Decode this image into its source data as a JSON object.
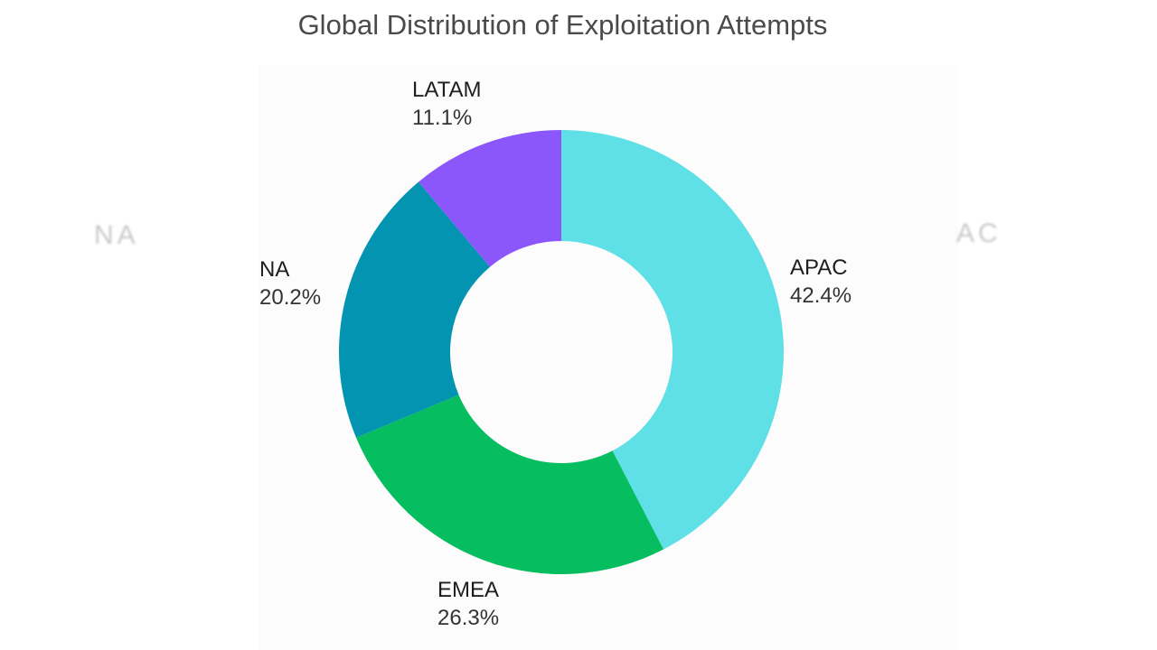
{
  "chart_data": {
    "type": "pie",
    "title": "Global Distribution of Exploitation Attempts",
    "donut": true,
    "slices": [
      {
        "label": "APAC",
        "value": 42.4,
        "value_label": "42.4%",
        "color": "#5fe0e6"
      },
      {
        "label": "EMEA",
        "value": 26.3,
        "value_label": "26.3%",
        "color": "#06be5f"
      },
      {
        "label": "NA",
        "value": 20.2,
        "value_label": "20.2%",
        "color": "#0294b1"
      },
      {
        "label": "LATAM",
        "value": 11.1,
        "value_label": "11.1%",
        "color": "#8b57fb"
      }
    ]
  },
  "ghost_text": {
    "left": "NA",
    "right": "AC"
  }
}
